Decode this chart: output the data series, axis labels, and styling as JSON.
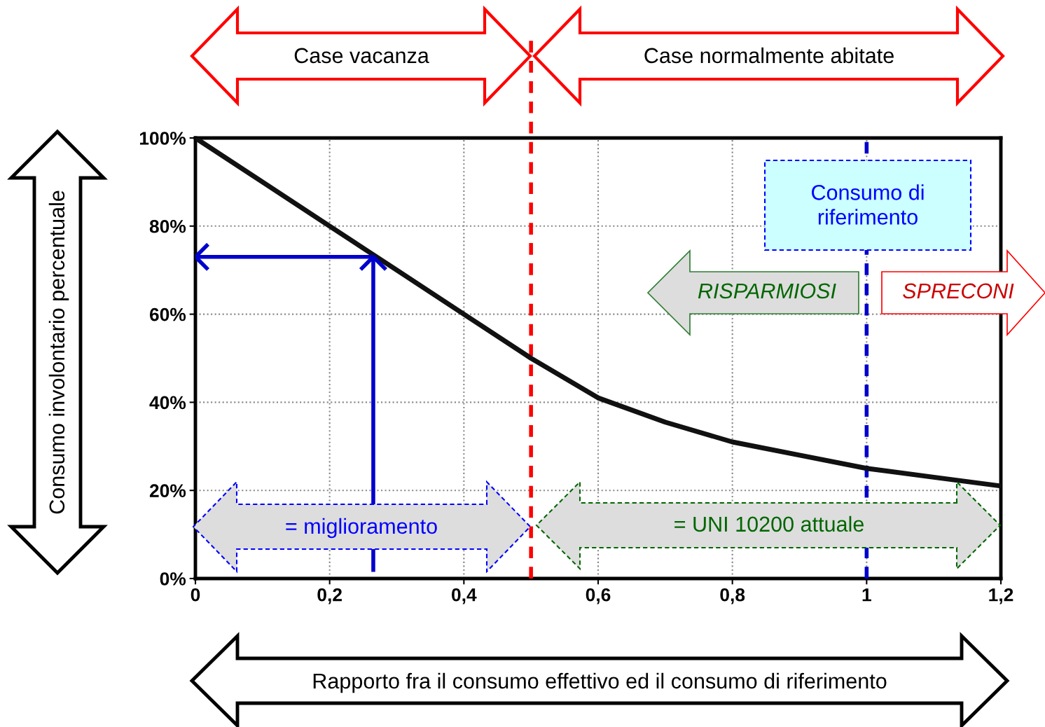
{
  "chart_data": {
    "type": "line",
    "xlabel": "Rapporto fra il consumo effettivo ed il consumo di riferimento",
    "ylabel": "Consumo involontario percentuale",
    "series": [
      {
        "color": "#111111",
        "x": [
          0,
          0.1,
          0.2,
          0.27,
          0.3,
          0.4,
          0.5,
          0.6,
          0.7,
          0.8,
          0.9,
          1.0,
          1.1,
          1.2
        ],
        "values": [
          100,
          90,
          80,
          73,
          70,
          60,
          50,
          41,
          35.5,
          31,
          28,
          25,
          23,
          21
        ]
      },
      {
        "color": "#0000cc",
        "x": [
          0.265,
          0.265,
          0
        ],
        "values": [
          1.5,
          73,
          73
        ]
      }
    ],
    "xlim": [
      0,
      1.2
    ],
    "xticks": [
      0,
      {
        "value": 0.2,
        "label": "0,2"
      },
      {
        "value": 0.4,
        "label": "0,4"
      },
      {
        "value": 0.6,
        "label": "0,6"
      },
      {
        "value": 0.8,
        "label": "0,8"
      },
      1,
      {
        "value": 1.2,
        "label": "1,2"
      }
    ],
    "ylim": [
      0,
      100
    ],
    "yticks": [
      {
        "value": 0,
        "label": "0%"
      },
      {
        "value": 20,
        "label": "20%"
      },
      {
        "value": 40,
        "label": "40%"
      },
      {
        "value": 60,
        "label": "60%"
      },
      {
        "value": 80,
        "label": "80%"
      },
      {
        "value": 100,
        "label": "100%"
      }
    ],
    "grid": true,
    "ref_lines": [
      {
        "axis": "x",
        "value": 0.5,
        "color": "#ff0000",
        "line_style": "dashed"
      },
      {
        "axis": "x",
        "value": 1,
        "color": "#0000cc",
        "line_style": "dashed"
      }
    ],
    "annotations": [
      "Case vacanza",
      "Case normalmente abitate",
      "Consumo di\nriferimento",
      "RISPARMIOSI",
      "SPRECONI",
      "= miglioramento",
      "= UNI 10200 attuale"
    ]
  }
}
